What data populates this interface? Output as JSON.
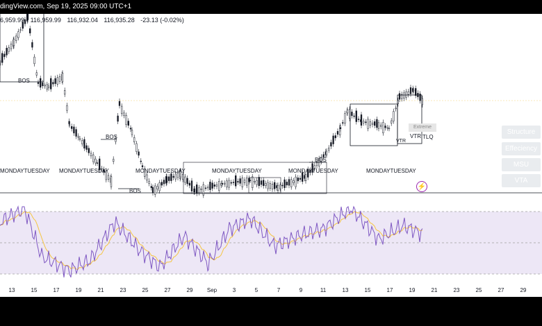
{
  "header": {
    "source_text": "dingView.com, Sep 19, 2025 09:00 UTC+1"
  },
  "ohlc": {
    "open": "6,959.99",
    "high": "116,959.99",
    "low": "116,932.04",
    "close": "116,935.28",
    "change": "-23.13 (-0.02%)"
  },
  "annotations": {
    "bos": "BOS",
    "vtr": "VTR",
    "tlq": "TLQ",
    "extreme": "Extreme",
    "day_labels": "MONDAYTUESDAY"
  },
  "side_panel": {
    "items": [
      {
        "label": "Structure"
      },
      {
        "label": "Effeciency"
      },
      {
        "label": "MSU"
      },
      {
        "label": "VTA"
      }
    ]
  },
  "x_axis": {
    "ticks": [
      "13",
      "15",
      "17",
      "19",
      "21",
      "23",
      "25",
      "27",
      "29",
      "Sep",
      "3",
      "5",
      "7",
      "9",
      "11",
      "13",
      "15",
      "17",
      "19",
      "21",
      "23",
      "25",
      "27",
      "29"
    ]
  },
  "colors": {
    "candle": "#131722",
    "rsi_line": "#7e57c2",
    "rsi_ma": "#f5c542",
    "rsi_band": "#ede7f6",
    "bolt": "#9c27b0"
  }
}
